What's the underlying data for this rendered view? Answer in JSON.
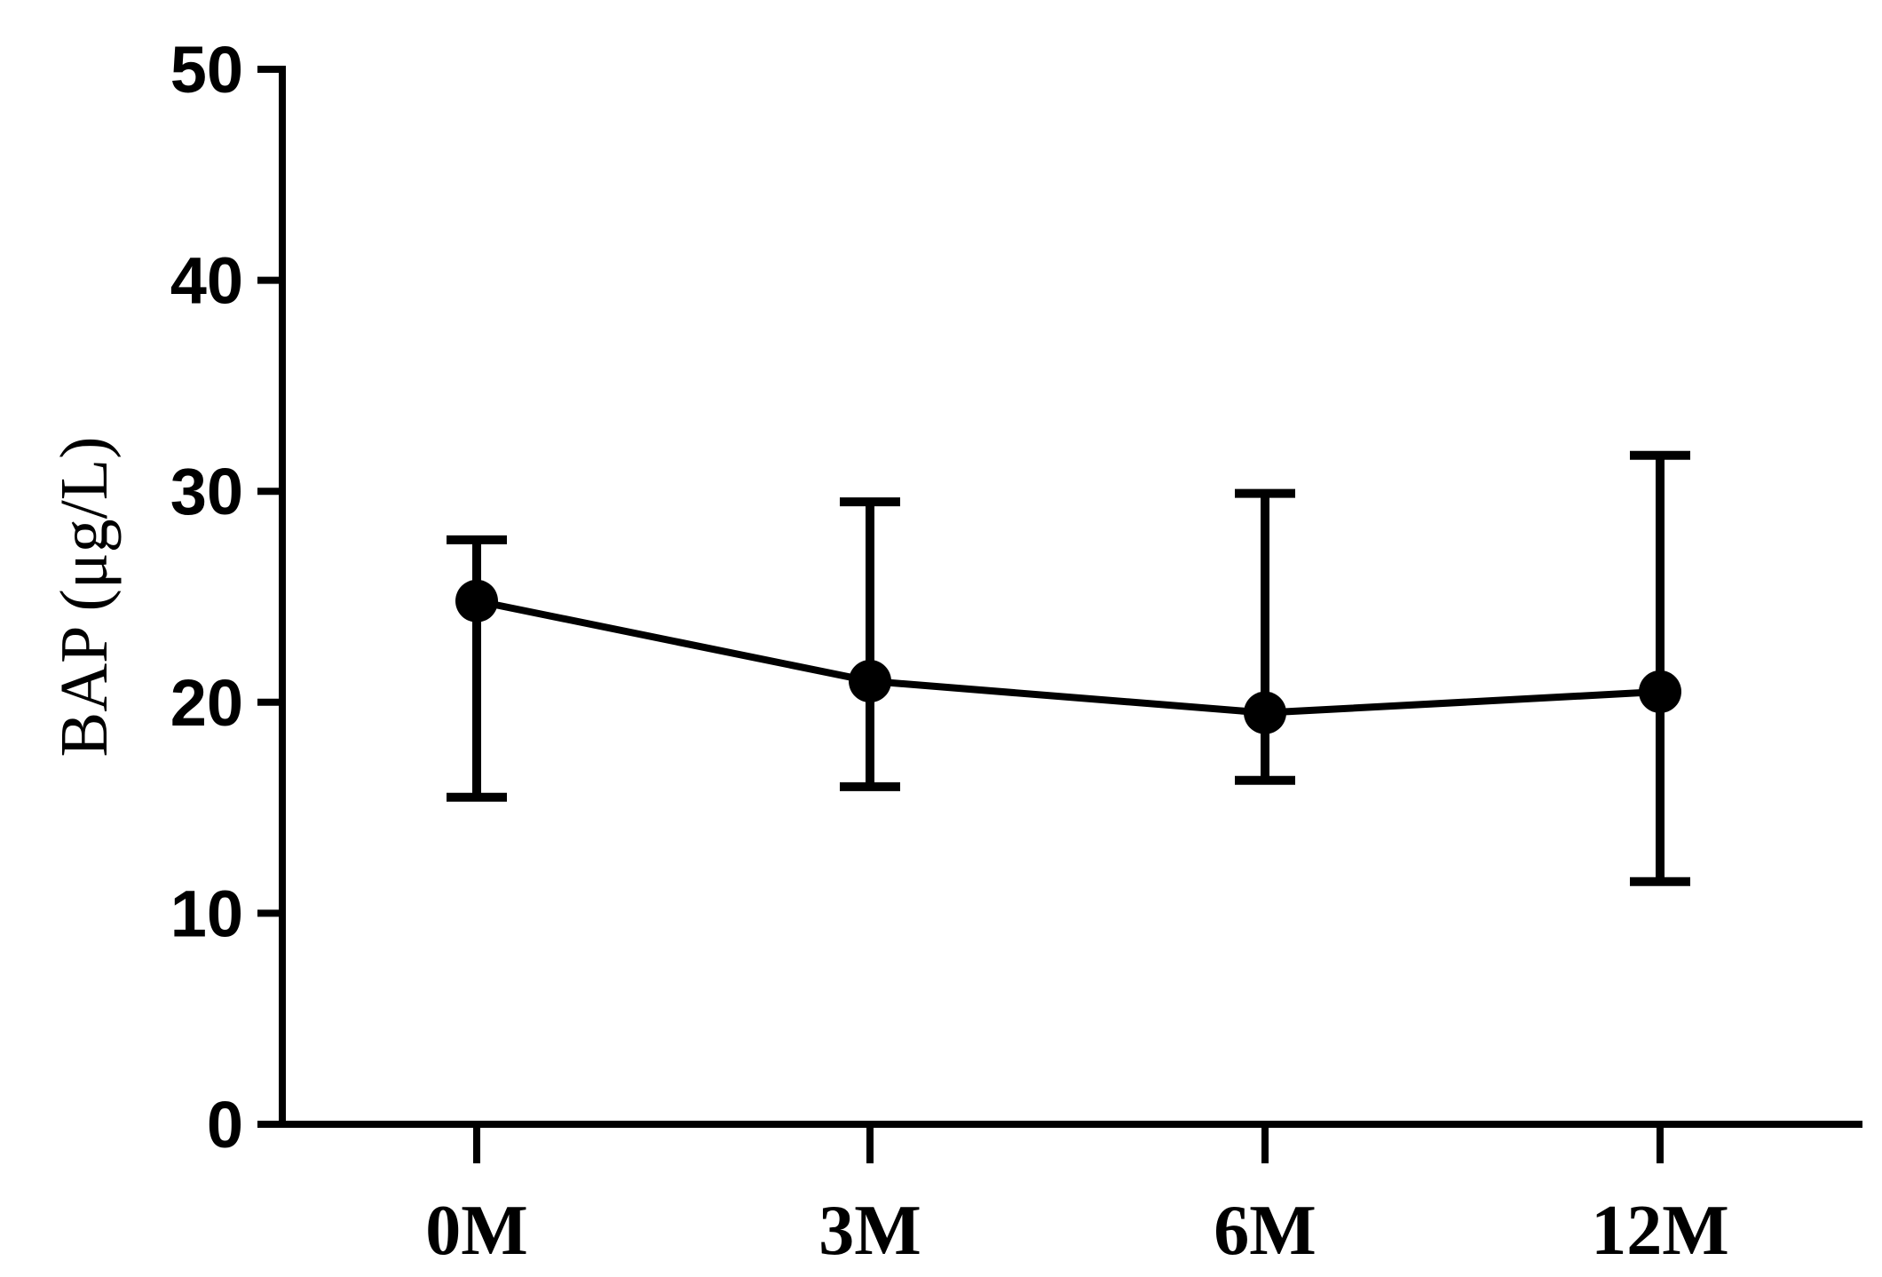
{
  "chart_data": {
    "type": "line",
    "title": "",
    "xlabel": "",
    "ylabel": "BAP (μg/L)",
    "categories": [
      "0M",
      "3M",
      "6M",
      "12M"
    ],
    "series": [
      {
        "values": [
          24.8,
          21.0,
          19.5,
          20.5
        ],
        "error_low": [
          15.5,
          16.0,
          16.3,
          11.5
        ],
        "error_high": [
          27.7,
          29.5,
          29.9,
          31.7
        ]
      }
    ],
    "ylim": [
      0,
      50
    ],
    "yticks": [
      "0",
      "10",
      "20",
      "30",
      "40",
      "50"
    ],
    "grid": false,
    "legend": "none",
    "colors": {
      "line": "#000000",
      "marker": "#000000",
      "axis": "#000000"
    }
  }
}
